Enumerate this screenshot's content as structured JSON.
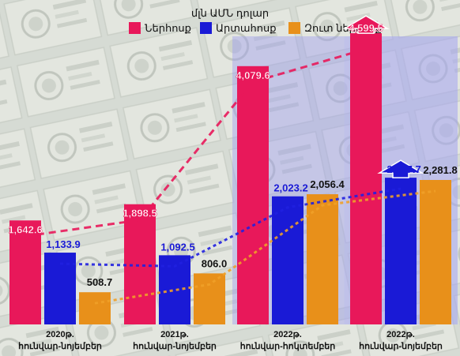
{
  "chart_data": {
    "type": "bar",
    "title": "մլն ԱՄՆ դոլար",
    "categories": [
      [
        "2020թ.",
        "հունվար-նոյեմբեր"
      ],
      [
        "2021թ.",
        "հունվար-նոյեմբեր"
      ],
      [
        "2022թ.",
        "հունվար-հոկտեմբեր"
      ],
      [
        "2022թ.",
        "հունվար-նոյեմբեր"
      ]
    ],
    "series": [
      {
        "name": "Ներհոսք",
        "color": "#e8185a",
        "label_color": "#ffffff",
        "values": [
          1642.6,
          1898.5,
          4079.6,
          4599.5
        ],
        "value_labels": [
          "1,642.6",
          "1,898.5",
          "4,079.6",
          "4,599.5"
        ]
      },
      {
        "name": "Արտահոսք",
        "color": "#1a1ad6",
        "label_color": "#1a1ad6",
        "values": [
          1133.9,
          1092.5,
          2023.2,
          2317.7
        ],
        "value_labels": [
          "1,133.9",
          "1,092.5",
          "2,023.2",
          "2,317.7"
        ]
      },
      {
        "name": "Զուտ ներհոսք",
        "color": "#e8901a",
        "label_color": "#111111",
        "values": [
          508.7,
          806.0,
          2056.4,
          2281.8
        ],
        "value_labels": [
          "508.7",
          "806.0",
          "2,056.4",
          "2,281.8"
        ]
      }
    ],
    "ylim": [
      0,
      4900
    ],
    "legend_position": "top",
    "grid": false,
    "trend_lines": true,
    "highlight_categories": [
      2,
      3
    ],
    "growth_arrows": [
      "Ներհոսք",
      "Արտահոսք"
    ],
    "background": "banknote photo"
  }
}
